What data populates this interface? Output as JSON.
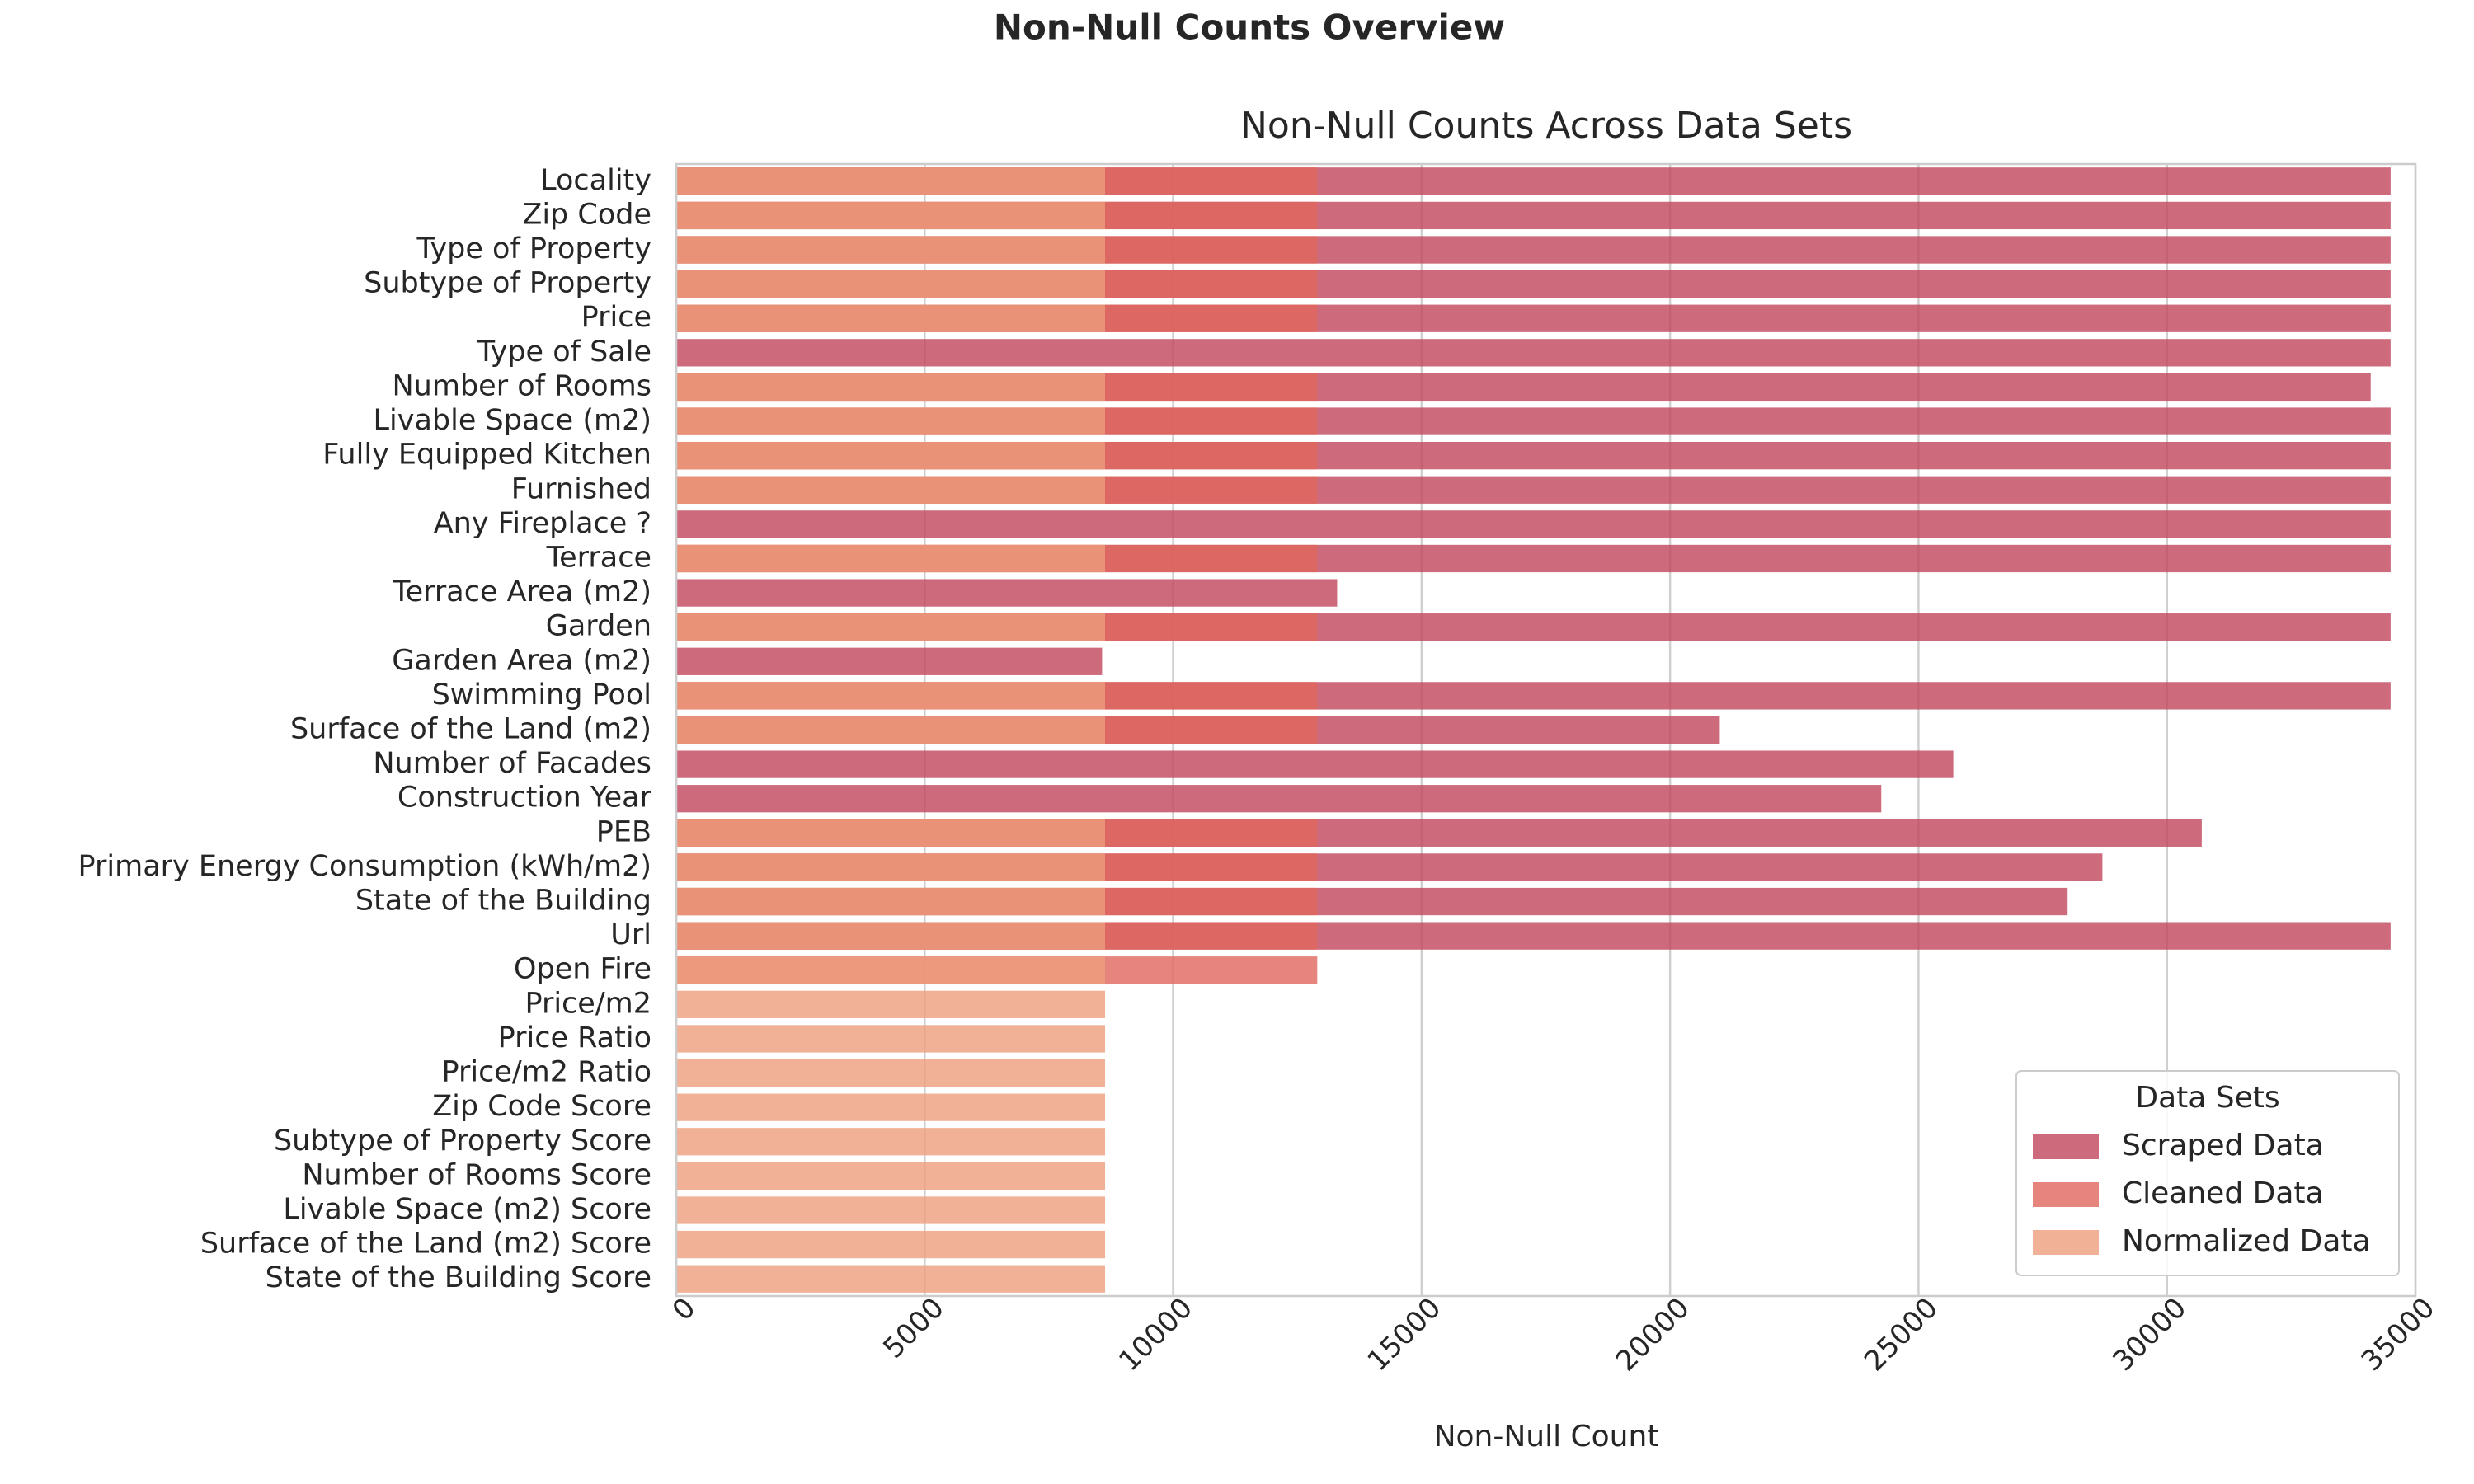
{
  "chart_data": {
    "type": "bar",
    "orientation": "horizontal",
    "suptitle": "Non-Null Counts Overview",
    "title": "Non-Null Counts Across Data Sets",
    "xlabel": "Non-Null Count",
    "categories": [
      "Locality",
      "Zip Code",
      "Type of Property",
      "Subtype of Property",
      "Price",
      "Type of Sale",
      "Number of Rooms",
      "Livable Space (m2)",
      "Fully Equipped Kitchen",
      "Furnished",
      "Any Fireplace ?",
      "Terrace",
      "Terrace Area (m2)",
      "Garden",
      "Garden Area (m2)",
      "Swimming Pool",
      "Surface of the Land (m2)",
      "Number of Facades",
      "Construction Year",
      "PEB",
      "Primary Energy Consumption (kWh/m2)",
      "State of the Building",
      "Url",
      "Open Fire",
      "Price/m2",
      "Price Ratio",
      "Price/m2 Ratio",
      "Zip Code Score",
      "Subtype of Property Score",
      "Number of Rooms Score",
      "Livable Space (m2) Score",
      "Surface of the Land (m2) Score",
      "State of the Building Score"
    ],
    "series": [
      {
        "name": "Scraped Data",
        "color": "#c0465c",
        "values": [
          34500,
          34500,
          34500,
          34500,
          34500,
          34500,
          34100,
          34500,
          34500,
          34500,
          34500,
          34500,
          13300,
          34500,
          8570,
          34500,
          21000,
          25700,
          24250,
          30700,
          28700,
          28000,
          34500,
          null,
          null,
          null,
          null,
          null,
          null,
          null,
          null,
          null,
          null
        ]
      },
      {
        "name": "Cleaned Data",
        "color": "#e0665c",
        "values": [
          12900,
          12900,
          12900,
          12900,
          12900,
          null,
          12900,
          12900,
          12900,
          12900,
          null,
          12900,
          null,
          12900,
          null,
          12900,
          12900,
          null,
          null,
          12900,
          12900,
          12900,
          12900,
          12900,
          null,
          null,
          null,
          null,
          null,
          null,
          null,
          null,
          null
        ]
      },
      {
        "name": "Normalized Data",
        "color": "#ee9d7d",
        "values": [
          8630,
          8630,
          8630,
          8630,
          8630,
          null,
          8630,
          8630,
          8630,
          8630,
          null,
          8630,
          null,
          8630,
          null,
          8630,
          8630,
          null,
          null,
          8630,
          8630,
          8630,
          8630,
          8630,
          8630,
          8630,
          8630,
          8630,
          8630,
          8630,
          8630,
          8630,
          8630
        ]
      }
    ],
    "xlim": [
      0,
      35000
    ],
    "xticks": [
      0,
      5000,
      10000,
      15000,
      20000,
      25000,
      30000,
      35000
    ],
    "grid": true,
    "legend_title": "Data Sets",
    "legend_position": "lower right"
  }
}
